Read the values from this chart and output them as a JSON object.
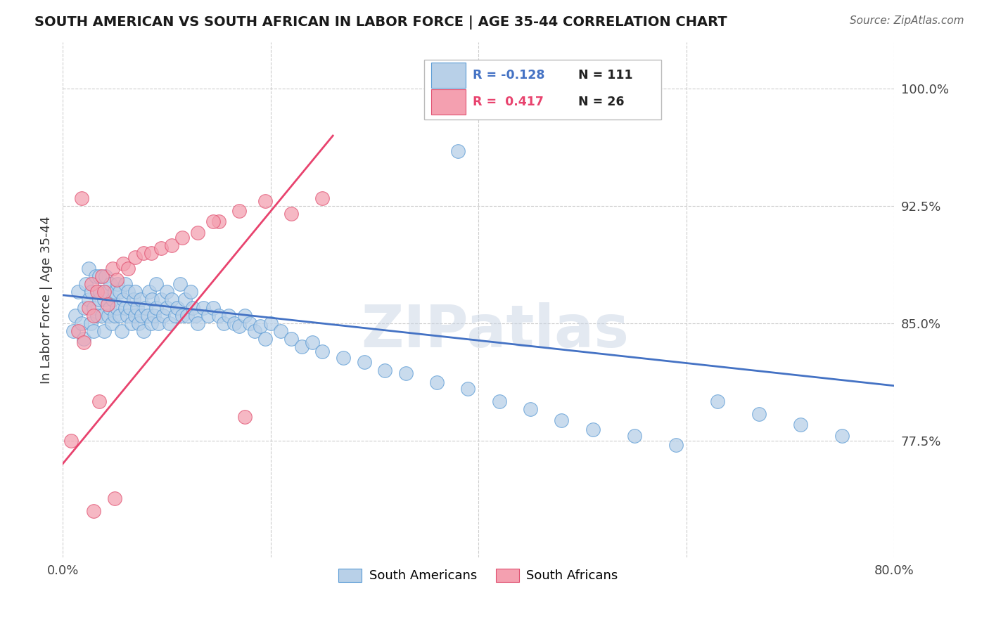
{
  "title": "SOUTH AMERICAN VS SOUTH AFRICAN IN LABOR FORCE | AGE 35-44 CORRELATION CHART",
  "source": "Source: ZipAtlas.com",
  "ylabel": "In Labor Force | Age 35-44",
  "xlim": [
    0.0,
    0.8
  ],
  "ylim": [
    0.7,
    1.03
  ],
  "xticks": [
    0.0,
    0.2,
    0.4,
    0.6,
    0.8
  ],
  "xtick_labels": [
    "0.0%",
    "",
    "",
    "",
    "80.0%"
  ],
  "ytick_labels": [
    "77.5%",
    "85.0%",
    "92.5%",
    "100.0%"
  ],
  "yticks": [
    0.775,
    0.85,
    0.925,
    1.0
  ],
  "legend_blue_r": "-0.128",
  "legend_blue_n": "111",
  "legend_pink_r": "0.417",
  "legend_pink_n": "26",
  "blue_fill": "#b8d0e8",
  "blue_edge": "#5b9bd5",
  "pink_fill": "#f4a0b0",
  "pink_edge": "#e05070",
  "blue_line_color": "#4472c4",
  "pink_line_color": "#e8436e",
  "blue_scatter_x": [
    0.01,
    0.012,
    0.015,
    0.018,
    0.02,
    0.021,
    0.022,
    0.025,
    0.025,
    0.027,
    0.028,
    0.03,
    0.03,
    0.032,
    0.033,
    0.035,
    0.035,
    0.036,
    0.038,
    0.04,
    0.04,
    0.041,
    0.043,
    0.044,
    0.045,
    0.046,
    0.047,
    0.048,
    0.05,
    0.05,
    0.052,
    0.053,
    0.055,
    0.055,
    0.057,
    0.058,
    0.06,
    0.06,
    0.062,
    0.063,
    0.065,
    0.066,
    0.068,
    0.07,
    0.07,
    0.072,
    0.073,
    0.075,
    0.076,
    0.078,
    0.08,
    0.082,
    0.083,
    0.085,
    0.086,
    0.088,
    0.09,
    0.09,
    0.092,
    0.095,
    0.097,
    0.1,
    0.1,
    0.103,
    0.105,
    0.108,
    0.11,
    0.113,
    0.115,
    0.118,
    0.12,
    0.123,
    0.125,
    0.128,
    0.13,
    0.135,
    0.14,
    0.145,
    0.15,
    0.155,
    0.16,
    0.165,
    0.17,
    0.175,
    0.18,
    0.185,
    0.19,
    0.195,
    0.2,
    0.21,
    0.22,
    0.23,
    0.24,
    0.25,
    0.27,
    0.29,
    0.31,
    0.33,
    0.36,
    0.39,
    0.42,
    0.45,
    0.48,
    0.51,
    0.55,
    0.59,
    0.63,
    0.67,
    0.71,
    0.75,
    0.38
  ],
  "blue_scatter_y": [
    0.845,
    0.855,
    0.87,
    0.85,
    0.84,
    0.86,
    0.875,
    0.865,
    0.885,
    0.85,
    0.87,
    0.845,
    0.86,
    0.88,
    0.855,
    0.865,
    0.88,
    0.87,
    0.855,
    0.845,
    0.865,
    0.88,
    0.87,
    0.855,
    0.86,
    0.875,
    0.85,
    0.865,
    0.855,
    0.87,
    0.86,
    0.875,
    0.855,
    0.87,
    0.845,
    0.865,
    0.86,
    0.875,
    0.855,
    0.87,
    0.86,
    0.85,
    0.865,
    0.855,
    0.87,
    0.86,
    0.85,
    0.865,
    0.855,
    0.845,
    0.86,
    0.855,
    0.87,
    0.85,
    0.865,
    0.855,
    0.86,
    0.875,
    0.85,
    0.865,
    0.855,
    0.87,
    0.86,
    0.85,
    0.865,
    0.855,
    0.86,
    0.875,
    0.855,
    0.865,
    0.855,
    0.87,
    0.86,
    0.855,
    0.85,
    0.86,
    0.855,
    0.86,
    0.855,
    0.85,
    0.855,
    0.85,
    0.848,
    0.855,
    0.85,
    0.845,
    0.848,
    0.84,
    0.85,
    0.845,
    0.84,
    0.835,
    0.838,
    0.832,
    0.828,
    0.825,
    0.82,
    0.818,
    0.812,
    0.808,
    0.8,
    0.795,
    0.788,
    0.782,
    0.778,
    0.772,
    0.8,
    0.792,
    0.785,
    0.778,
    0.96
  ],
  "pink_scatter_x": [
    0.008,
    0.015,
    0.02,
    0.025,
    0.028,
    0.03,
    0.033,
    0.038,
    0.04,
    0.043,
    0.048,
    0.052,
    0.058,
    0.063,
    0.07,
    0.078,
    0.085,
    0.095,
    0.105,
    0.115,
    0.13,
    0.15,
    0.17,
    0.195,
    0.22,
    0.25
  ],
  "pink_scatter_y": [
    0.775,
    0.845,
    0.838,
    0.86,
    0.875,
    0.855,
    0.87,
    0.88,
    0.87,
    0.862,
    0.885,
    0.878,
    0.888,
    0.885,
    0.892,
    0.895,
    0.895,
    0.898,
    0.9,
    0.905,
    0.908,
    0.915,
    0.922,
    0.928,
    0.92,
    0.93
  ],
  "pink_isolated_x": [
    0.018,
    0.03,
    0.035,
    0.05,
    0.145,
    0.175
  ],
  "pink_isolated_y": [
    0.93,
    0.73,
    0.8,
    0.738,
    0.915,
    0.79
  ],
  "blue_trend_x": [
    0.0,
    0.8
  ],
  "blue_trend_y": [
    0.868,
    0.81
  ],
  "pink_trend_x": [
    0.0,
    0.26
  ],
  "pink_trend_y": [
    0.76,
    0.97
  ]
}
